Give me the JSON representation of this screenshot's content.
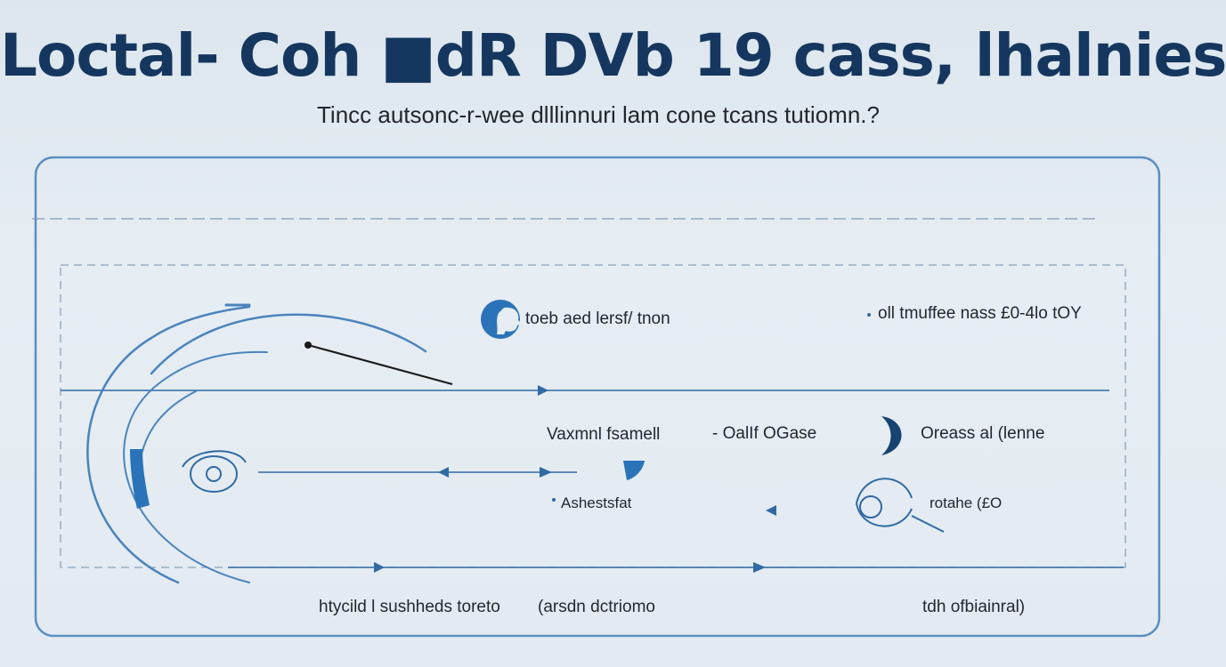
{
  "header": {
    "title": "Loctal‐ Coh ■dR DVb 19 cass, lhalnies",
    "subtitle": "Tincc autsonc-r-wee dlllinnuri lam cone tcans tutiomn.?"
  },
  "diagram": {
    "labels": {
      "top_center": "toeb aed lersf/ tnon",
      "top_right": "oll tmuffee nass £0-4lo tOY",
      "mid_left": "Vaxmnl fsamell",
      "mid_center": "- OalIf OGase",
      "mid_right": "Oreass al (lenne",
      "lower_left": "Ashestsfat",
      "lower_right": "rotahe (£O",
      "bottom_left": "htycild l sushheds toreto",
      "bottom_center": "(arsdn dctriomo",
      "bottom_right": "tdh ofbiainral)"
    },
    "colors": {
      "frame": "#5b8ec0",
      "line": "#2f6aa3",
      "accent": "#2a73b8",
      "dark_accent": "#16436f",
      "pointer": "#1a1a1a"
    },
    "icons": [
      "head-profile-icon",
      "crescent-icon",
      "eye-icon",
      "pointer-wand-icon"
    ]
  }
}
